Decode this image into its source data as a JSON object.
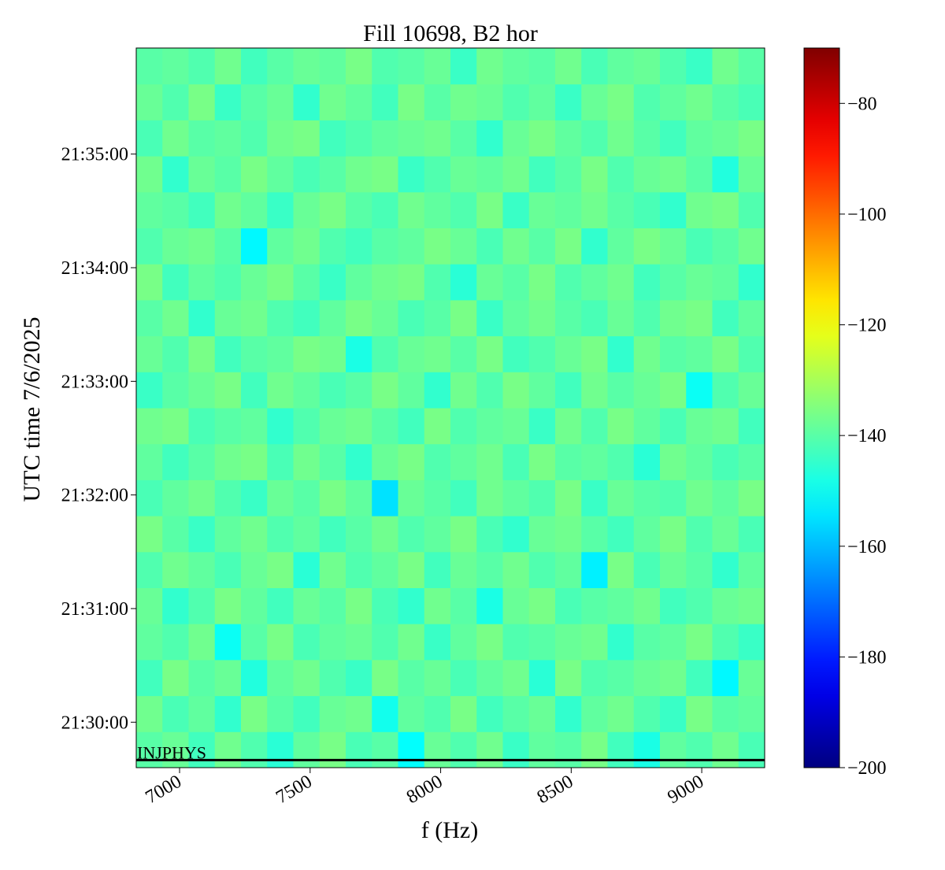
{
  "chart_data": {
    "type": "heatmap",
    "title": "Fill 10698, B2 hor",
    "x_label": "f (Hz)",
    "y_label": "UTC time 7/6/2025",
    "xlim": [
      6834,
      9241
    ],
    "xticks": [
      7000,
      7500,
      8000,
      8500,
      9000
    ],
    "ylim": [
      "21:29:36",
      "21:35:56"
    ],
    "yticks": [
      "21:30:00",
      "21:31:00",
      "21:32:00",
      "21:33:00",
      "21:34:00",
      "21:35:00"
    ],
    "colormap": "jet",
    "clim": [
      -200,
      -70
    ],
    "cticks": [
      {
        "value": -80,
        "label": "−80"
      },
      {
        "value": -100,
        "label": "−100"
      },
      {
        "value": -120,
        "label": "−120"
      },
      {
        "value": -140,
        "label": "−140"
      },
      {
        "value": -160,
        "label": "−160"
      },
      {
        "value": -180,
        "label": "−180"
      },
      {
        "value": -200,
        "label": "−200"
      }
    ],
    "annotation": {
      "text": "INJPHYS",
      "time": "21:29:40",
      "color": "#000000"
    },
    "z": [
      [
        -140,
        -138,
        -143,
        -137,
        -141,
        -146,
        -139,
        -136,
        -142,
        -140,
        -151,
        -138,
        -141,
        -137,
        -144,
        -139,
        -140,
        -136,
        -143,
        -148,
        -139,
        -141,
        -137,
        -142
      ],
      [
        -137,
        -142,
        -139,
        -145,
        -136,
        -140,
        -143,
        -138,
        -137,
        -149,
        -139,
        -141,
        -136,
        -143,
        -140,
        -138,
        -145,
        -139,
        -137,
        -141,
        -144,
        -136,
        -140,
        -139
      ],
      [
        -143,
        -136,
        -140,
        -138,
        -147,
        -139,
        -137,
        -141,
        -144,
        -136,
        -140,
        -138,
        -142,
        -139,
        -137,
        -146,
        -136,
        -141,
        -140,
        -138,
        -137,
        -143,
        -152,
        -138
      ],
      [
        -139,
        -141,
        -137,
        -150,
        -140,
        -136,
        -142,
        -139,
        -138,
        -141,
        -137,
        -144,
        -139,
        -136,
        -141,
        -140,
        -138,
        -137,
        -145,
        -140,
        -139,
        -136,
        -141,
        -144
      ],
      [
        -138,
        -145,
        -141,
        -136,
        -139,
        -143,
        -138,
        -140,
        -136,
        -142,
        -145,
        -137,
        -140,
        -148,
        -138,
        -136,
        -142,
        -140,
        -139,
        -137,
        -143,
        -141,
        -138,
        -137
      ],
      [
        -141,
        -137,
        -139,
        -142,
        -138,
        -136,
        -146,
        -137,
        -141,
        -139,
        -136,
        -143,
        -138,
        -140,
        -137,
        -141,
        -139,
        -153,
        -136,
        -142,
        -138,
        -140,
        -145,
        -139
      ],
      [
        -136,
        -140,
        -144,
        -139,
        -137,
        -141,
        -139,
        -143,
        -140,
        -137,
        -141,
        -139,
        -136,
        -142,
        -145,
        -138,
        -137,
        -140,
        -143,
        -139,
        -136,
        -141,
        -138,
        -142
      ],
      [
        -142,
        -139,
        -137,
        -141,
        -144,
        -138,
        -140,
        -136,
        -139,
        -155,
        -138,
        -140,
        -143,
        -137,
        -139,
        -141,
        -136,
        -144,
        -138,
        -140,
        -141,
        -137,
        -139,
        -136
      ],
      [
        -139,
        -143,
        -140,
        -137,
        -136,
        -142,
        -137,
        -140,
        -145,
        -138,
        -136,
        -141,
        -139,
        -137,
        -142,
        -136,
        -140,
        -139,
        -141,
        -146,
        -137,
        -139,
        -142,
        -140
      ],
      [
        -137,
        -136,
        -142,
        -140,
        -139,
        -145,
        -141,
        -138,
        -137,
        -140,
        -143,
        -136,
        -141,
        -139,
        -138,
        -144,
        -137,
        -141,
        -136,
        -139,
        -142,
        -138,
        -137,
        -143
      ],
      [
        -144,
        -140,
        -138,
        -136,
        -143,
        -137,
        -139,
        -142,
        -140,
        -136,
        -139,
        -145,
        -137,
        -141,
        -136,
        -139,
        -143,
        -137,
        -140,
        -138,
        -136,
        -150,
        -141,
        -138
      ],
      [
        -138,
        -141,
        -136,
        -143,
        -140,
        -139,
        -136,
        -137,
        -148,
        -141,
        -138,
        -137,
        -140,
        -136,
        -143,
        -141,
        -138,
        -136,
        -145,
        -137,
        -140,
        -139,
        -136,
        -141
      ],
      [
        -140,
        -137,
        -145,
        -138,
        -137,
        -141,
        -143,
        -139,
        -136,
        -138,
        -142,
        -140,
        -136,
        -144,
        -139,
        -137,
        -140,
        -142,
        -138,
        -141,
        -137,
        -136,
        -143,
        -139
      ],
      [
        -136,
        -143,
        -139,
        -141,
        -138,
        -136,
        -140,
        -144,
        -139,
        -137,
        -136,
        -141,
        -146,
        -138,
        -140,
        -136,
        -141,
        -139,
        -137,
        -143,
        -140,
        -138,
        -139,
        -145
      ],
      [
        -141,
        -138,
        -137,
        -140,
        -152,
        -139,
        -137,
        -141,
        -143,
        -140,
        -139,
        -136,
        -138,
        -142,
        -137,
        -140,
        -136,
        -145,
        -139,
        -136,
        -138,
        -142,
        -140,
        -137
      ],
      [
        -139,
        -140,
        -143,
        -137,
        -139,
        -144,
        -138,
        -136,
        -140,
        -142,
        -137,
        -139,
        -141,
        -136,
        -144,
        -138,
        -139,
        -137,
        -140,
        -142,
        -145,
        -137,
        -136,
        -141
      ],
      [
        -137,
        -145,
        -138,
        -140,
        -136,
        -139,
        -142,
        -140,
        -137,
        -136,
        -144,
        -141,
        -138,
        -139,
        -137,
        -143,
        -140,
        -136,
        -141,
        -138,
        -137,
        -140,
        -147,
        -138
      ],
      [
        -142,
        -137,
        -140,
        -139,
        -141,
        -137,
        -136,
        -143,
        -141,
        -139,
        -138,
        -137,
        -140,
        -145,
        -138,
        -136,
        -139,
        -141,
        -137,
        -140,
        -143,
        -139,
        -138,
        -136
      ],
      [
        -138,
        -141,
        -136,
        -144,
        -140,
        -138,
        -145,
        -137,
        -139,
        -143,
        -136,
        -140,
        -137,
        -138,
        -141,
        -139,
        -144,
        -138,
        -136,
        -141,
        -139,
        -137,
        -140,
        -142
      ],
      [
        -140,
        -139,
        -141,
        -137,
        -143,
        -140,
        -138,
        -139,
        -136,
        -141,
        -140,
        -138,
        -144,
        -137,
        -139,
        -140,
        -137,
        -142,
        -139,
        -138,
        -141,
        -144,
        -137,
        -140
      ]
    ]
  }
}
